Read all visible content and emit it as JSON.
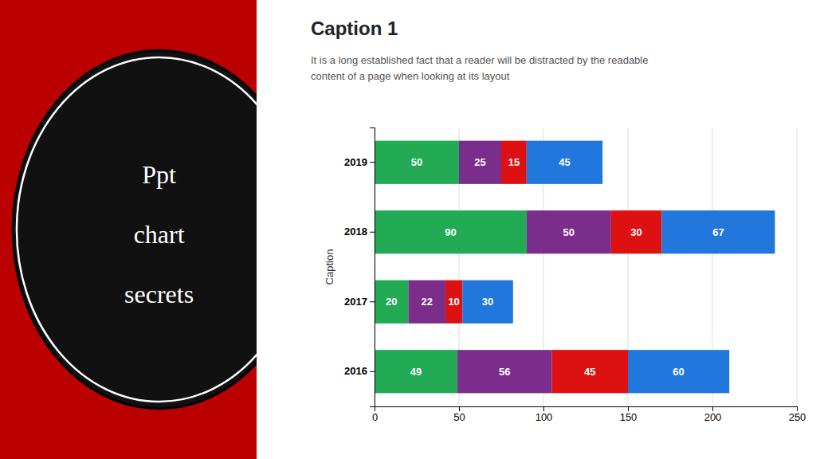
{
  "chart_data": {
    "type": "bar",
    "orientation": "horizontal",
    "stacked": true,
    "data_labels": true,
    "grid": true,
    "title": "Caption 1",
    "subtitle": "It is a long established fact that a reader will be distracted by the readable\ncontent of a page when looking at its layout",
    "ylabel": "Caption",
    "annotations": [
      "Ppt",
      "chart",
      "secrets"
    ],
    "categories": [
      "2016",
      "2017",
      "2018",
      "2019"
    ],
    "series": [
      {
        "color": "#22AA55",
        "values": [
          49,
          20,
          90,
          50
        ]
      },
      {
        "color": "#7B2D8B",
        "values": [
          56,
          22,
          50,
          25
        ]
      },
      {
        "color": "#DD1111",
        "values": [
          45,
          10,
          30,
          15
        ]
      },
      {
        "color": "#2277DD",
        "values": [
          60,
          30,
          67,
          45
        ]
      }
    ],
    "xlim": [
      0,
      250
    ],
    "xticks": [
      0,
      50,
      100,
      150,
      200,
      250
    ]
  }
}
